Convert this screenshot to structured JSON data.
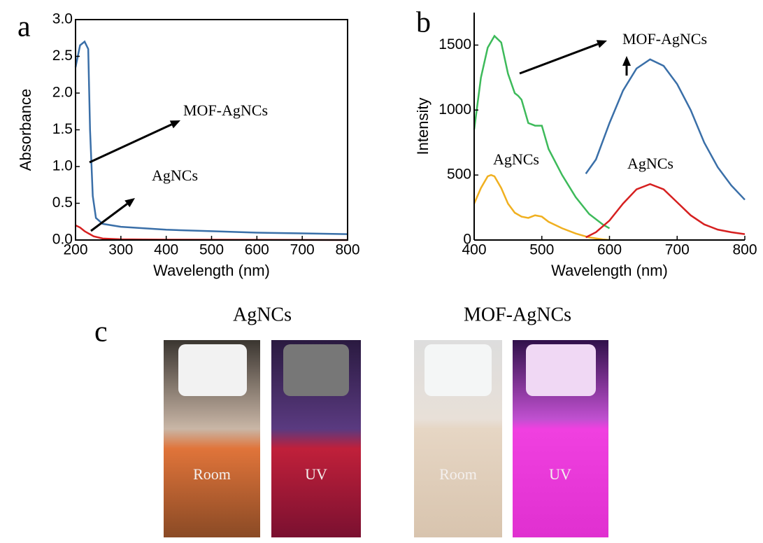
{
  "chart_data": [
    {
      "type": "line",
      "panel": "a",
      "xlabel": "Wavelength (nm)",
      "ylabel": "Absorbance",
      "xlim": [
        200,
        800
      ],
      "xticks": [
        200,
        300,
        400,
        500,
        600,
        700,
        800
      ],
      "ylim": [
        0,
        3
      ],
      "yticks": [
        {
          "value": 0,
          "label": "0.0"
        },
        0.5,
        {
          "value": 1,
          "label": "1.0"
        },
        1.5,
        {
          "value": 2,
          "label": "2.0"
        },
        2.5,
        {
          "value": 3,
          "label": "3.0"
        }
      ],
      "frame": true,
      "series": [
        {
          "color": "#3a6fa8",
          "x": [
            200,
            210,
            220,
            228,
            232,
            238,
            245,
            260,
            300,
            400,
            500,
            600,
            700,
            800
          ],
          "values": [
            2.35,
            2.65,
            2.7,
            2.6,
            1.5,
            0.6,
            0.3,
            0.22,
            0.18,
            0.14,
            0.12,
            0.1,
            0.09,
            0.08
          ]
        },
        {
          "color": "#d62020",
          "x": [
            200,
            210,
            220,
            240,
            260,
            300,
            400,
            800
          ],
          "values": [
            0.2,
            0.17,
            0.12,
            0.05,
            0.02,
            0.01,
            0.005,
            0
          ]
        }
      ],
      "annotations": [
        {
          "text": "MOF-AgNCs"
        },
        {
          "text": "AgNCs"
        }
      ]
    },
    {
      "type": "line",
      "panel": "b",
      "xlabel": "Wavelength (nm)",
      "ylabel": "Intensity",
      "xlim": [
        400,
        800
      ],
      "xticks": [
        400,
        500,
        600,
        700,
        800
      ],
      "ylim": [
        0,
        1750
      ],
      "yticks": [
        0,
        500,
        1000,
        1500
      ],
      "frame": false,
      "series": [
        {
          "color": "#3dba5a",
          "x": [
            400,
            410,
            420,
            430,
            440,
            450,
            460,
            465,
            470,
            480,
            490,
            500,
            510,
            530,
            550,
            570,
            590,
            600
          ],
          "values": [
            850,
            1250,
            1480,
            1570,
            1520,
            1280,
            1130,
            1110,
            1080,
            900,
            880,
            880,
            700,
            500,
            330,
            200,
            120,
            90
          ]
        },
        {
          "color": "#f0b020",
          "x": [
            400,
            410,
            420,
            425,
            430,
            440,
            450,
            460,
            470,
            480,
            490,
            500,
            510,
            530,
            550,
            570,
            590,
            600
          ],
          "values": [
            280,
            400,
            490,
            500,
            490,
            400,
            280,
            210,
            180,
            170,
            190,
            180,
            140,
            90,
            50,
            20,
            5,
            0
          ]
        },
        {
          "color": "#3a6fa8",
          "x": [
            565,
            580,
            600,
            620,
            640,
            660,
            680,
            700,
            720,
            740,
            760,
            780,
            800
          ],
          "values": [
            510,
            620,
            900,
            1150,
            1320,
            1390,
            1340,
            1200,
            1000,
            750,
            560,
            420,
            310
          ]
        },
        {
          "color": "#d62020",
          "x": [
            565,
            580,
            600,
            620,
            640,
            660,
            680,
            700,
            720,
            740,
            760,
            780,
            800
          ],
          "values": [
            20,
            60,
            150,
            280,
            390,
            430,
            390,
            290,
            190,
            120,
            80,
            60,
            45
          ]
        }
      ],
      "annotations": [
        {
          "text": "MOF-AgNCs"
        },
        {
          "text": "AgNCs"
        },
        {
          "text": "AgNCs"
        }
      ]
    }
  ],
  "photos": {
    "panel": "c",
    "groups": [
      {
        "title": "AgNCs",
        "vials": [
          "Room",
          "UV"
        ]
      },
      {
        "title": "MOF-AgNCs",
        "vials": [
          "Room",
          "UV"
        ]
      }
    ]
  }
}
